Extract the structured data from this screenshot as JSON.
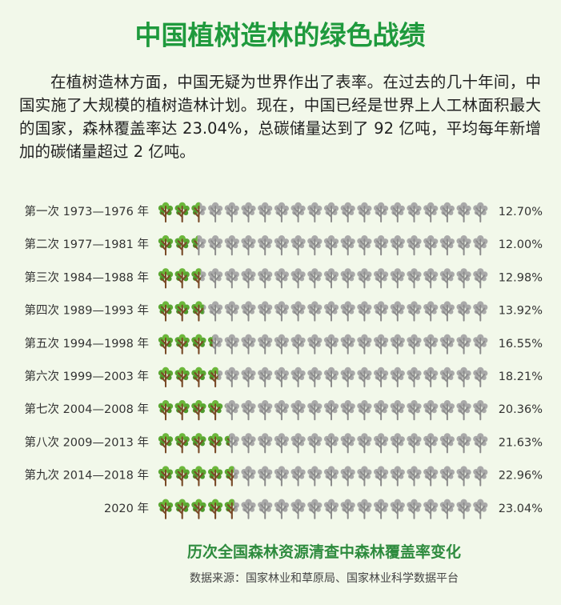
{
  "chart_data": {
    "type": "pictogram",
    "title": "中国植树造林的绿色战绩",
    "subtitle": "在植树造林方面，中国无疑为世界作出了表率。在过去的几十年间，中国实施了大规模的植树造林计划。现在，中国已经是世界上人工林面积最大的国家，森林覆盖率达 23.04%，总碳储量达到了 92 亿吨，平均每年新增加的碳储量超过 2 亿吨。",
    "categories": [
      "第一次 1973—1976 年",
      "第二次 1977—1981 年",
      "第三次 1984—1988 年",
      "第四次 1989—1993 年",
      "第五次 1994—1998 年",
      "第六次 1999—2003 年",
      "第七次 2004—2008 年",
      "第八次 2009—2013 年",
      "第九次 2014—2018 年",
      "2020 年"
    ],
    "values": [
      12.7,
      12.0,
      12.98,
      13.92,
      16.55,
      18.21,
      20.36,
      21.63,
      22.96,
      23.04
    ],
    "value_labels": [
      "12.70%",
      "12.00%",
      "12.98%",
      "13.92%",
      "16.55%",
      "18.21%",
      "20.36%",
      "21.63%",
      "22.96%",
      "23.04%"
    ],
    "xlim": [
      0,
      100
    ],
    "color": "#5aa832",
    "caption": "历次全国森林资源清查中森林覆盖率变化",
    "source": "数据来源：国家林业和草原局、国家林业科学数据平台"
  }
}
